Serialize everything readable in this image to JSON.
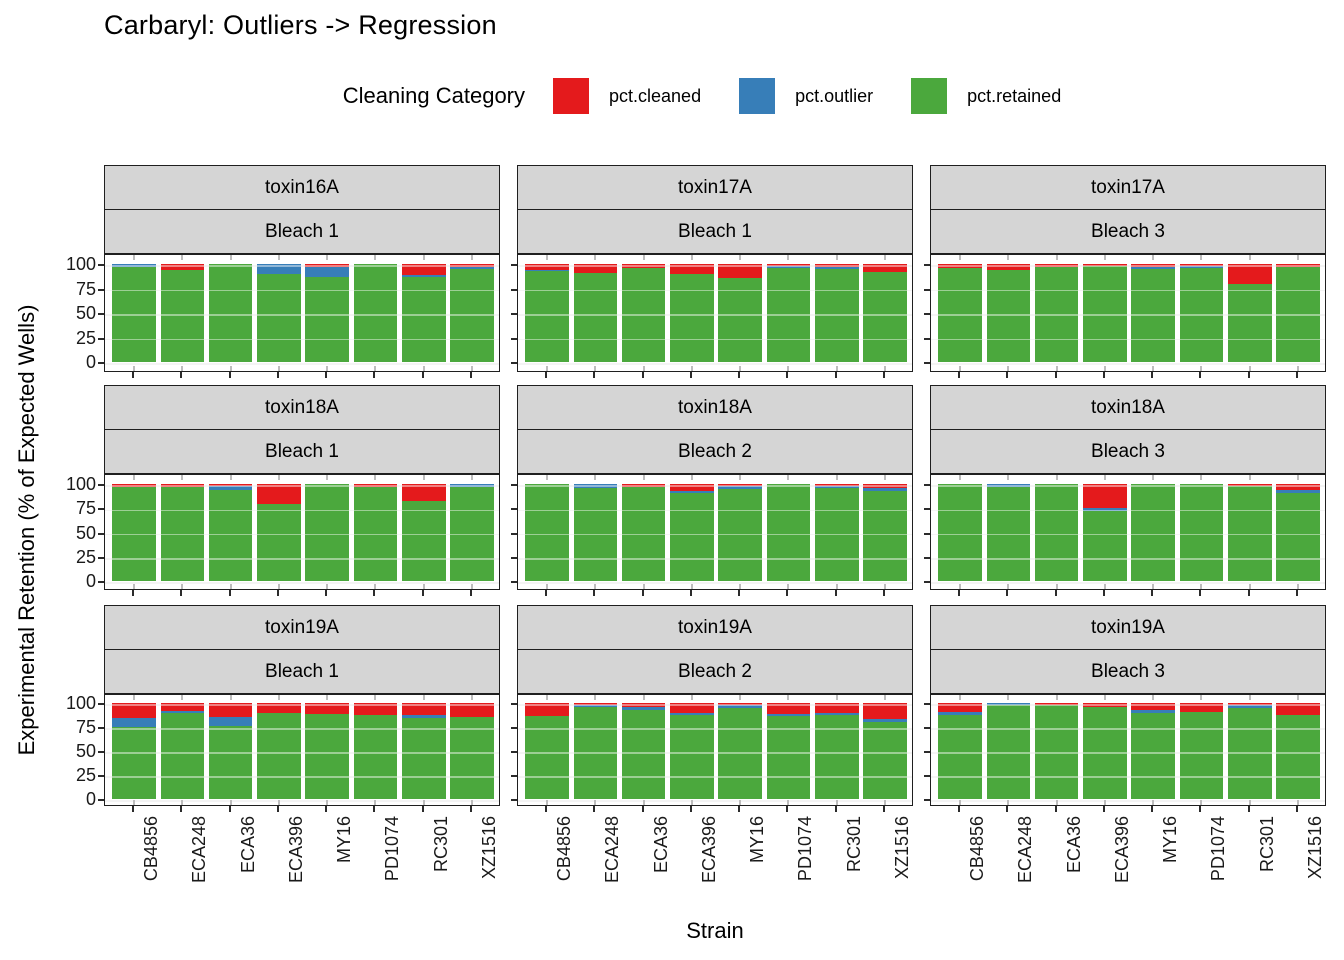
{
  "title": "Carbaryl: Outliers -> Regression",
  "legend": {
    "title": "Cleaning Category",
    "items": [
      {
        "label": "pct.cleaned",
        "color": "#E41A1C"
      },
      {
        "label": "pct.outlier",
        "color": "#377EB8"
      },
      {
        "label": "pct.retained",
        "color": "#4BA83D"
      }
    ]
  },
  "axes": {
    "x_title": "Strain",
    "y_title": "Experimental Retention (% of Expected Wells)",
    "y_ticks": [
      100,
      75,
      50,
      25,
      0
    ],
    "ylim": [
      0,
      100
    ]
  },
  "chart_data": {
    "type": "bar",
    "stacked": true,
    "grid": "major-horizontal",
    "legend_position": "top",
    "categories": [
      "CB4856",
      "ECA248",
      "ECA36",
      "ECA396",
      "MY16",
      "PD1074",
      "RC301",
      "XZ1516"
    ],
    "series_names": [
      "pct.cleaned",
      "pct.outlier",
      "pct.retained"
    ],
    "ylim": [
      0,
      100
    ],
    "facets": [
      {
        "toxin": "toxin16A",
        "bleach": "Bleach 1",
        "cleaned": [
          0,
          6,
          0,
          0,
          3,
          0,
          11,
          3
        ],
        "outlier": [
          3,
          0,
          0,
          10,
          10,
          0,
          2,
          2
        ],
        "retained": [
          97,
          94,
          100,
          90,
          87,
          100,
          87,
          95
        ]
      },
      {
        "toxin": "toxin17A",
        "bleach": "Bleach 1",
        "cleaned": [
          6,
          9,
          4,
          10,
          14,
          2,
          3,
          8
        ],
        "outlier": [
          1,
          0,
          0,
          0,
          0,
          2,
          2,
          0
        ],
        "retained": [
          93,
          91,
          96,
          90,
          86,
          96,
          95,
          92
        ]
      },
      {
        "toxin": "toxin17A",
        "bleach": "Bleach 3",
        "cleaned": [
          4,
          6,
          3,
          2,
          3,
          2,
          20,
          3
        ],
        "outlier": [
          0,
          0,
          0,
          0,
          2,
          2,
          0,
          0
        ],
        "retained": [
          96,
          94,
          97,
          98,
          95,
          96,
          80,
          97
        ]
      },
      {
        "toxin": "toxin18A",
        "bleach": "Bleach 1",
        "cleaned": [
          3,
          3,
          2,
          21,
          0,
          3,
          17,
          0
        ],
        "outlier": [
          0,
          0,
          4,
          0,
          0,
          0,
          0,
          3
        ],
        "retained": [
          97,
          97,
          94,
          79,
          100,
          97,
          83,
          97
        ]
      },
      {
        "toxin": "toxin18A",
        "bleach": "Bleach 2",
        "cleaned": [
          0,
          0,
          3,
          7,
          2,
          0,
          2,
          4
        ],
        "outlier": [
          0,
          4,
          0,
          2,
          3,
          0,
          2,
          3
        ],
        "retained": [
          100,
          96,
          97,
          91,
          95,
          100,
          96,
          93
        ]
      },
      {
        "toxin": "toxin18A",
        "bleach": "Bleach 3",
        "cleaned": [
          0,
          0,
          0,
          25,
          0,
          0,
          2,
          6
        ],
        "outlier": [
          0,
          3,
          0,
          3,
          0,
          0,
          0,
          3
        ],
        "retained": [
          100,
          97,
          100,
          72,
          100,
          100,
          98,
          91
        ]
      },
      {
        "toxin": "toxin19A",
        "bleach": "Bleach 1",
        "cleaned": [
          16,
          8,
          15,
          10,
          11,
          13,
          12,
          15
        ],
        "outlier": [
          9,
          2,
          9,
          0,
          0,
          0,
          4,
          0
        ],
        "retained": [
          75,
          90,
          76,
          90,
          89,
          87,
          84,
          85
        ]
      },
      {
        "toxin": "toxin19A",
        "bleach": "Bleach 2",
        "cleaned": [
          14,
          2,
          4,
          10,
          2,
          11,
          10,
          17
        ],
        "outlier": [
          0,
          2,
          3,
          3,
          3,
          3,
          3,
          3
        ],
        "retained": [
          86,
          96,
          93,
          87,
          95,
          86,
          87,
          80
        ]
      },
      {
        "toxin": "toxin19A",
        "bleach": "Bleach 3",
        "cleaned": [
          9,
          0,
          2,
          4,
          7,
          9,
          2,
          12
        ],
        "outlier": [
          3,
          2,
          0,
          0,
          3,
          0,
          3,
          0
        ],
        "retained": [
          88,
          98,
          98,
          96,
          90,
          91,
          95,
          88
        ]
      }
    ]
  }
}
